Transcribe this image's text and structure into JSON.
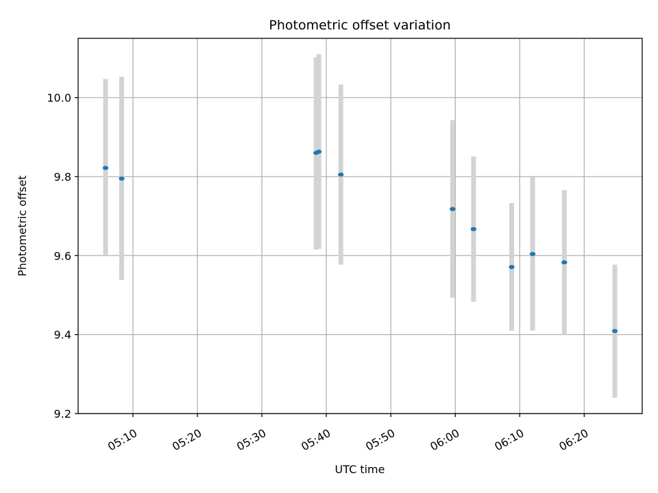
{
  "chart_data": {
    "type": "scatter",
    "title": "Photometric offset variation",
    "xlabel": "UTC time",
    "ylabel": "Photometric offset",
    "x_axis_type": "time",
    "xlim": [
      "05:01:30",
      "06:29:00"
    ],
    "ylim": [
      9.2,
      10.15
    ],
    "x_ticks": [
      "05:10",
      "05:20",
      "05:30",
      "05:40",
      "05:50",
      "06:00",
      "06:10",
      "06:20"
    ],
    "y_ticks": [
      "9.2",
      "9.4",
      "9.6",
      "9.8",
      "10.0"
    ],
    "grid": true,
    "legend": "none",
    "colors": {
      "points": "#1f77b4",
      "error_bars": "#d3d3d3",
      "grid": "#b0b0b0"
    },
    "points": [
      {
        "x": "05:05:45",
        "y": 9.822,
        "y_low": 9.6,
        "y_high": 10.047
      },
      {
        "x": "05:08:15",
        "y": 9.795,
        "y_low": 9.538,
        "y_high": 10.053
      },
      {
        "x": "05:38:25",
        "y": 9.86,
        "y_low": 9.615,
        "y_high": 10.102
      },
      {
        "x": "05:38:50",
        "y": 9.863,
        "y_low": 9.617,
        "y_high": 10.11
      },
      {
        "x": "05:42:15",
        "y": 9.805,
        "y_low": 9.577,
        "y_high": 10.033
      },
      {
        "x": "05:59:35",
        "y": 9.718,
        "y_low": 9.493,
        "y_high": 9.943
      },
      {
        "x": "06:02:50",
        "y": 9.667,
        "y_low": 9.483,
        "y_high": 9.851
      },
      {
        "x": "06:08:45",
        "y": 9.571,
        "y_low": 9.41,
        "y_high": 9.733
      },
      {
        "x": "06:12:00",
        "y": 9.604,
        "y_low": 9.41,
        "y_high": 9.8
      },
      {
        "x": "06:16:55",
        "y": 9.583,
        "y_low": 9.4,
        "y_high": 9.766
      },
      {
        "x": "06:24:45",
        "y": 9.409,
        "y_low": 9.24,
        "y_high": 9.577
      }
    ]
  }
}
